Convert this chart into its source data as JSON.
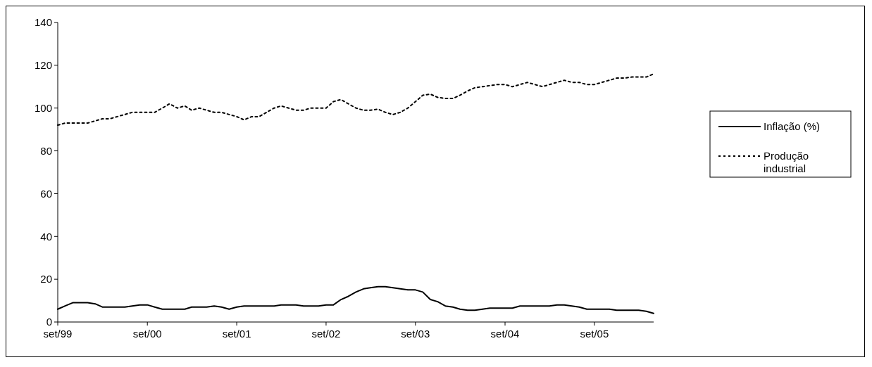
{
  "chart_data": {
    "type": "line",
    "x": [
      "1999-09",
      "1999-10",
      "1999-11",
      "1999-12",
      "2000-01",
      "2000-02",
      "2000-03",
      "2000-04",
      "2000-05",
      "2000-06",
      "2000-07",
      "2000-08",
      "2000-09",
      "2000-10",
      "2000-11",
      "2000-12",
      "2001-01",
      "2001-02",
      "2001-03",
      "2001-04",
      "2001-05",
      "2001-06",
      "2001-07",
      "2001-08",
      "2001-09",
      "2001-10",
      "2001-11",
      "2001-12",
      "2002-01",
      "2002-02",
      "2002-03",
      "2002-04",
      "2002-05",
      "2002-06",
      "2002-07",
      "2002-08",
      "2002-09",
      "2002-10",
      "2002-11",
      "2002-12",
      "2003-01",
      "2003-02",
      "2003-03",
      "2003-04",
      "2003-05",
      "2003-06",
      "2003-07",
      "2003-08",
      "2003-09",
      "2003-10",
      "2003-11",
      "2003-12",
      "2004-01",
      "2004-02",
      "2004-03",
      "2004-04",
      "2004-05",
      "2004-06",
      "2004-07",
      "2004-08",
      "2004-09",
      "2004-10",
      "2004-11",
      "2004-12",
      "2005-01",
      "2005-02",
      "2005-03",
      "2005-04",
      "2005-05",
      "2005-06",
      "2005-07",
      "2005-08",
      "2005-09",
      "2005-10",
      "2005-11",
      "2005-12",
      "2006-01",
      "2006-02",
      "2006-03",
      "2006-04",
      "2006-05"
    ],
    "series": [
      {
        "name": "Inflação (%)",
        "color": "#000000",
        "line_style": "solid",
        "values": [
          6,
          7.5,
          9,
          9,
          9,
          8.5,
          7,
          7,
          7,
          7,
          7.5,
          8,
          8,
          7,
          6,
          6,
          6,
          6,
          7,
          7,
          7,
          7.5,
          7,
          6,
          7,
          7.5,
          7.5,
          7.5,
          7.5,
          7.5,
          8,
          8,
          8,
          7.5,
          7.5,
          7.5,
          8,
          8,
          10.5,
          12,
          14,
          15.5,
          16,
          16.5,
          16.5,
          16,
          15.5,
          15,
          15,
          14,
          10.5,
          9.5,
          7.5,
          7,
          6,
          5.5,
          5.5,
          6,
          6.5,
          6.5,
          6.5,
          6.5,
          7.5,
          7.5,
          7.5,
          7.5,
          7.5,
          8,
          8,
          7.5,
          7,
          6,
          6,
          6,
          6,
          5.5,
          5.5,
          5.5,
          5.5,
          5,
          4
        ]
      },
      {
        "name": "Produção industrial",
        "color": "#000000",
        "line_style": "dotted",
        "values": [
          92,
          93,
          93,
          93,
          93,
          94,
          95,
          95,
          96,
          97,
          98,
          98,
          98,
          98,
          100,
          102,
          100,
          101,
          99,
          100,
          99,
          98,
          98,
          97,
          96,
          94.5,
          96,
          96,
          98,
          100,
          101,
          100,
          99,
          99,
          100,
          100,
          100,
          103,
          104,
          102,
          100,
          99,
          99,
          99.5,
          98,
          97,
          98,
          100,
          103,
          106,
          106.5,
          105,
          104.5,
          104.5,
          106,
          108,
          109.5,
          110,
          110.5,
          111,
          111,
          110,
          111,
          112,
          111,
          110,
          111,
          112,
          113,
          112,
          112,
          111,
          111,
          112,
          113,
          114,
          114,
          114.5,
          114.5,
          114.5,
          116
        ]
      }
    ],
    "xlim": [
      "1999-09",
      "2006-05"
    ],
    "xticks": [
      {
        "value": "1999-09",
        "label": "set/99"
      },
      {
        "value": "2000-09",
        "label": "set/00"
      },
      {
        "value": "2001-09",
        "label": "set/01"
      },
      {
        "value": "2002-09",
        "label": "set/02"
      },
      {
        "value": "2003-09",
        "label": "set/03"
      },
      {
        "value": "2004-09",
        "label": "set/04"
      },
      {
        "value": "2005-09",
        "label": "set/05"
      }
    ],
    "ylim": [
      0,
      140
    ],
    "yticks": [
      0,
      20,
      40,
      60,
      80,
      100,
      120,
      140
    ],
    "grid": false,
    "legend": "right"
  }
}
